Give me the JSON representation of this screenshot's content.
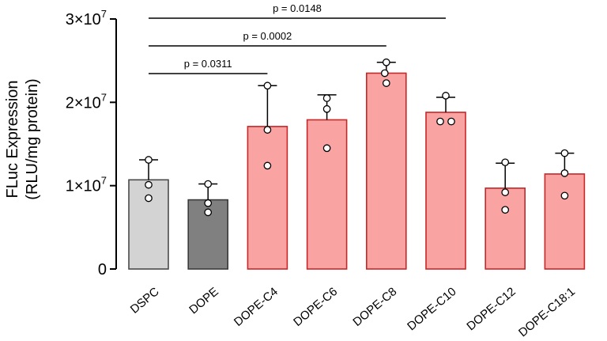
{
  "chart_data": {
    "type": "bar",
    "ylabel_line1": "FLuc Expression",
    "ylabel_line2": "(RLU/mg protein)",
    "ylim": [
      0,
      30000000
    ],
    "yticks": [
      {
        "value": 0,
        "label": "0",
        "exp": ""
      },
      {
        "value": 10000000,
        "label": "1×10",
        "exp": "7"
      },
      {
        "value": 20000000,
        "label": "2×10",
        "exp": "7"
      },
      {
        "value": 30000000,
        "label": "3×10",
        "exp": "7"
      }
    ],
    "categories": [
      "DSPC",
      "DOPE",
      "DOPE-C4",
      "DOPE-C6",
      "DOPE-C8",
      "DOPE-C10",
      "DOPE-C12",
      "DOPE-C18:1"
    ],
    "values": [
      10700000,
      8300000,
      17100000,
      17900000,
      23500000,
      18800000,
      9700000,
      11400000
    ],
    "error_upper": [
      13100000,
      10200000,
      22000000,
      20900000,
      24800000,
      20600000,
      12700000,
      13900000
    ],
    "points": [
      [
        13100000,
        10100000,
        8500000
      ],
      [
        10200000,
        7900000,
        6800000
      ],
      [
        22000000,
        16700000,
        12400000
      ],
      [
        20500000,
        19200000,
        14500000
      ],
      [
        24800000,
        23500000,
        22300000
      ],
      [
        20800000,
        17700000,
        17700000
      ],
      [
        12800000,
        9200000,
        7100000
      ],
      [
        13900000,
        11500000,
        8800000
      ]
    ],
    "bar_fills": [
      "#d3d3d3",
      "#808080",
      "#f9a3a3",
      "#f9a3a3",
      "#f9a3a3",
      "#f9a3a3",
      "#f9a3a3",
      "#f9a3a3"
    ],
    "bar_strokes": [
      "#4a4a4a",
      "#3a3a3a",
      "#c62828",
      "#c62828",
      "#c62828",
      "#c62828",
      "#c62828",
      "#c62828"
    ],
    "comparisons": [
      {
        "from": 0,
        "to": 2,
        "label": "p = 0.0311"
      },
      {
        "from": 0,
        "to": 4,
        "label": "p = 0.0002"
      },
      {
        "from": 0,
        "to": 5,
        "label": "p = 0.0148"
      }
    ]
  }
}
